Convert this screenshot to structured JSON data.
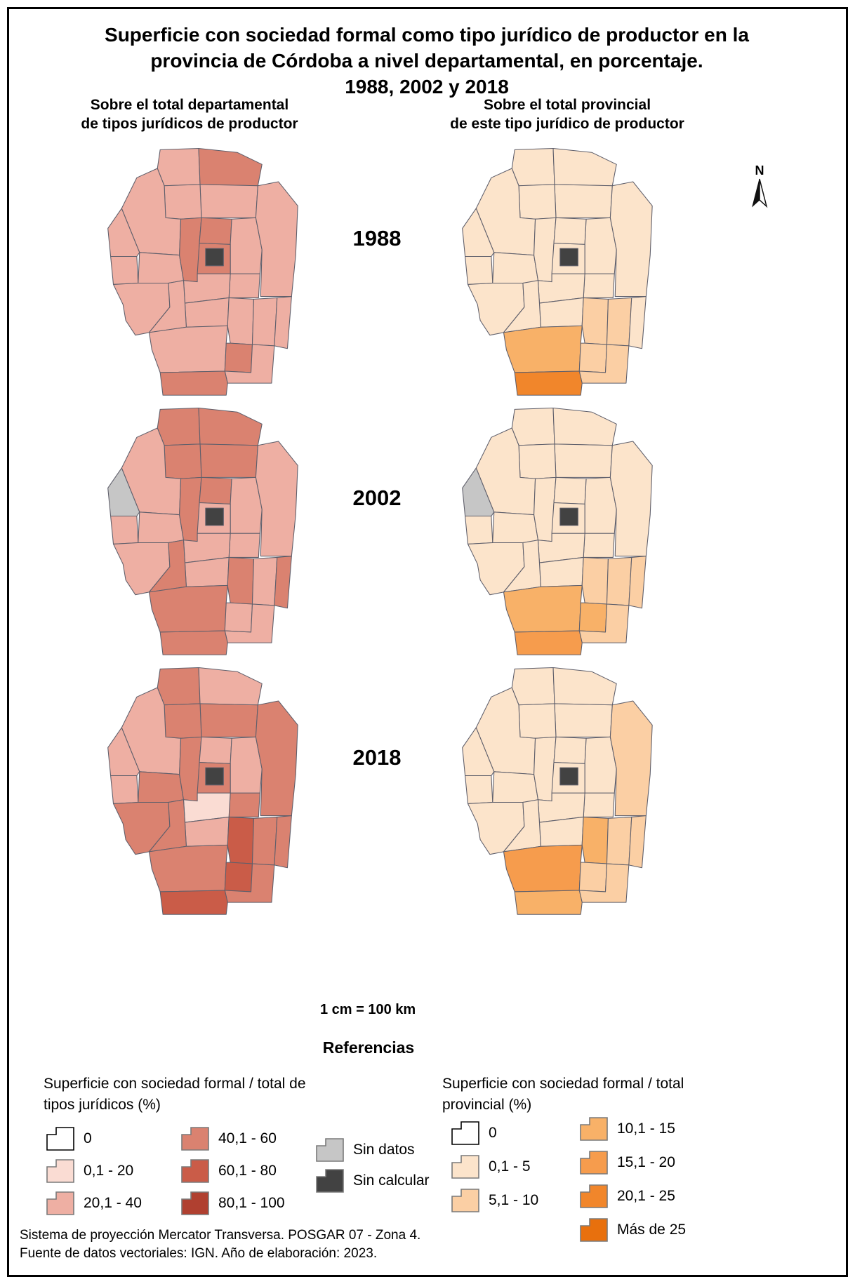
{
  "title": {
    "line1": "Superficie con sociedad formal como tipo jurídico de productor en la",
    "line2": "provincia de Córdoba a nivel departamental, en porcentaje.",
    "line3": "1988, 2002 y 2018"
  },
  "column_headers": {
    "left": {
      "line1": "Sobre el total departamental",
      "line2": "de tipos jurídicos de productor"
    },
    "right": {
      "line1": "Sobre el total provincial",
      "line2": "de este tipo jurídico de productor"
    }
  },
  "north_label": "N",
  "rows": [
    {
      "year": "1988"
    },
    {
      "year": "2002"
    },
    {
      "year": "2018"
    }
  ],
  "scale_text": "1 cm = 100 km",
  "references_heading": "Referencias",
  "legend_left": {
    "title_line1": "Superficie con sociedad formal / total de",
    "title_line2": "tipos jurídicos (%)",
    "classes": [
      {
        "key": "w",
        "label": "0",
        "color": "#ffffff"
      },
      {
        "key": "c1",
        "label": "0,1 - 20",
        "color": "#fadcd3"
      },
      {
        "key": "c2",
        "label": "20,1 - 40",
        "color": "#eeafa3"
      },
      {
        "key": "c3",
        "label": "40,1 - 60",
        "color": "#da8270"
      },
      {
        "key": "c4",
        "label": "60,1 - 80",
        "color": "#ca5c48"
      },
      {
        "key": "c5",
        "label": "80,1 - 100",
        "color": "#b04030"
      }
    ],
    "special": [
      {
        "key": "nd",
        "label": "Sin datos",
        "color": "#c6c6c6"
      },
      {
        "key": "nc",
        "label": "Sin calcular",
        "color": "#424242"
      }
    ]
  },
  "legend_right": {
    "title_line1": "Superficie con sociedad formal / total",
    "title_line2": "provincial (%)",
    "classes": [
      {
        "key": "w",
        "label": "0",
        "color": "#ffffff"
      },
      {
        "key": "o1",
        "label": "0,1 - 5",
        "color": "#fce4cb"
      },
      {
        "key": "o2",
        "label": "5,1 - 10",
        "color": "#fbcfa4"
      },
      {
        "key": "o3",
        "label": "10,1 - 15",
        "color": "#f8b168"
      },
      {
        "key": "o4",
        "label": "15,1 - 20",
        "color": "#f69c4d"
      },
      {
        "key": "o5",
        "label": "20,1 - 25",
        "color": "#f1862b"
      },
      {
        "key": "o6",
        "label": "Más de 25",
        "color": "#e8700d"
      }
    ]
  },
  "footer": {
    "line1": "Sistema de proyección Mercator Transversa. POSGAR 07 - Zona 4.",
    "line2": "Fuente de datos vectoriales: IGN. Año de elaboración: 2023."
  },
  "map_data": {
    "stroke": "#5f5f6b",
    "maps": [
      {
        "id": "left-1988",
        "year": "1988",
        "legend": "left",
        "default": "c2",
        "overrides": {
          "rio_seco": "c3",
          "totoral": "c3",
          "punilla": "c3",
          "colon": "c3",
          "juarez_celman": "c3",
          "gen_roca": "c3",
          "capital": "nc"
        }
      },
      {
        "id": "right-1988",
        "year": "1988",
        "legend": "right",
        "default": "o1",
        "overrides": {
          "gsm": "o2",
          "union": "o2",
          "juarez_celman": "o2",
          "saenz_pena": "o2",
          "rio_cuarto": "o3",
          "gen_roca": "o5",
          "capital": "nc"
        }
      },
      {
        "id": "left-2002",
        "year": "2002",
        "legend": "left",
        "default": "c2",
        "overrides": {
          "sobremonte": "c3",
          "rio_seco": "c3",
          "tulumba": "c3",
          "ischilin": "c3",
          "punilla": "c3",
          "totoral": "c3",
          "calamuchita": "c3",
          "gsm": "c3",
          "marcos_juarez": "c3",
          "rio_cuarto": "c3",
          "gen_roca": "c3",
          "minas": "nd",
          "capital": "nc"
        }
      },
      {
        "id": "right-2002",
        "year": "2002",
        "legend": "right",
        "default": "o1",
        "overrides": {
          "minas": "nd",
          "gsm": "o2",
          "union": "o2",
          "marcos_juarez": "o2",
          "saenz_pena": "o2",
          "rio_cuarto": "o3",
          "juarez_celman": "o3",
          "gen_roca": "o4",
          "capital": "nc"
        }
      },
      {
        "id": "left-2018",
        "year": "2018",
        "legend": "left",
        "default": "c3",
        "overrides": {
          "rio_seco": "c2",
          "cruz_del_eje": "c2",
          "minas": "c2",
          "pocho": "c2",
          "totoral": "c2",
          "rio_primero": "c2",
          "tercero_arriba": "c2",
          "santa_maria": "c1",
          "gsm": "c4",
          "juarez_celman": "c4",
          "gen_roca": "c4",
          "capital": "nc"
        }
      },
      {
        "id": "right-2018",
        "year": "2018",
        "legend": "right",
        "default": "o1",
        "overrides": {
          "san_justo": "o2",
          "gsm": "o3",
          "union": "o2",
          "marcos_juarez": "o2",
          "juarez_celman": "o2",
          "saenz_pena": "o2",
          "rio_cuarto": "o4",
          "gen_roca": "o3",
          "capital": "nc"
        }
      }
    ]
  }
}
